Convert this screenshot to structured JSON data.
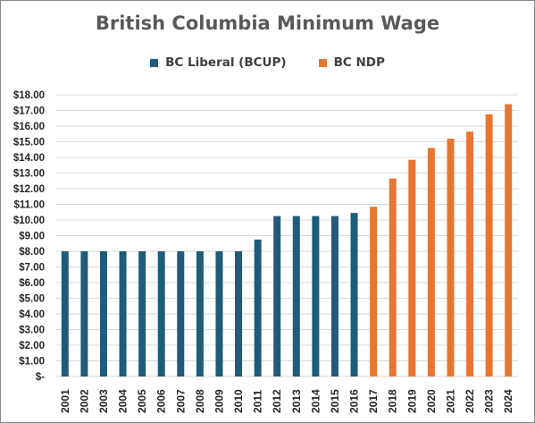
{
  "chart_data": {
    "type": "bar",
    "title": "British Columbia Minimum Wage",
    "categories": [
      "2001",
      "2002",
      "2003",
      "2004",
      "2005",
      "2006",
      "2007",
      "2008",
      "2009",
      "2010",
      "2011",
      "2012",
      "2013",
      "2014",
      "2015",
      "2016",
      "2017",
      "2018",
      "2019",
      "2020",
      "2021",
      "2022",
      "2023",
      "2024"
    ],
    "series": [
      {
        "name": "BC Liberal (BCUP)",
        "color": "#1f5b7a",
        "values": [
          8.0,
          8.0,
          8.0,
          8.0,
          8.0,
          8.0,
          8.0,
          8.0,
          8.0,
          8.0,
          8.75,
          10.25,
          10.25,
          10.25,
          10.25,
          10.45,
          null,
          null,
          null,
          null,
          null,
          null,
          null,
          null
        ]
      },
      {
        "name": "BC NDP",
        "color": "#e67732",
        "values": [
          null,
          null,
          null,
          null,
          null,
          null,
          null,
          null,
          null,
          null,
          null,
          null,
          null,
          null,
          null,
          null,
          10.85,
          12.65,
          13.85,
          14.6,
          15.2,
          15.65,
          16.75,
          17.4
        ]
      }
    ],
    "ylim": [
      0,
      18
    ],
    "yticks": [
      "$-",
      "$1.00",
      "$2.00",
      "$3.00",
      "$4.00",
      "$5.00",
      "$6.00",
      "$7.00",
      "$8.00",
      "$9.00",
      "$10.00",
      "$11.00",
      "$12.00",
      "$13.00",
      "$14.00",
      "$15.00",
      "$16.00",
      "$17.00",
      "$18.00"
    ],
    "grid": true,
    "legend": "top"
  }
}
